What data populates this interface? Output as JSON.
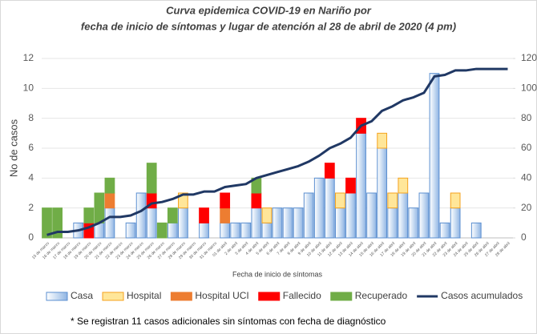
{
  "chart_data": {
    "type": "bar",
    "stacked": true,
    "title": "Curva epidemica COVID-19 en Nariño por",
    "subtitle": "fecha de inicio de síntomas y lugar de atención al 28 de abril de 2020 (4 pm)",
    "x_label": "Fecha de inicio de síntomas",
    "y_label": "No de casos",
    "footnote": "* Se registran 11 casos adicionales sin síntomas con  fecha de diagnóstico",
    "categories": [
      "15 de marzo",
      "16 de marzo",
      "17 de marzo",
      "18 de marzo",
      "19 de marzo",
      "20 de marzo",
      "21 de marzo",
      "22 de marzo",
      "23 de marzo",
      "24 de marzo",
      "25 de marzo",
      "26 de marzo",
      "27 de marzo",
      "28 de marzo",
      "29 de marzo",
      "30 de marzo",
      "31 de marzo",
      "01 de abril",
      "2 de abril",
      "3 de abril",
      "4 de abril",
      "5 de abril",
      "6 de abril",
      "7 de abril",
      "8 de abril",
      "9 de abril",
      "10 de abril",
      "11 de abril",
      "12 de abril",
      "13 de abril",
      "14 de abril",
      "15 de abril",
      "16 de abril",
      "17 de abril",
      "18 de abril",
      "19 de abril",
      "20 de abril",
      "21 de abril",
      "22 de abril",
      "23 de abril",
      "24 de abril",
      "25 de abril",
      "26 de abril",
      "27 de abril",
      "28 de abril"
    ],
    "series": [
      {
        "name": "Casa",
        "color": "#c9dcf2",
        "border": "#5b8fd0",
        "values": [
          0,
          0,
          0,
          1,
          0,
          1,
          2,
          0,
          1,
          3,
          2,
          0,
          1,
          2,
          0,
          1,
          0,
          1,
          1,
          1,
          2,
          1,
          2,
          2,
          2,
          3,
          4,
          4,
          2,
          3,
          7,
          3,
          6,
          2,
          3,
          2,
          3,
          11,
          1,
          2,
          0,
          1,
          0,
          0,
          0
        ]
      },
      {
        "name": "Hospital",
        "color": "#ffe699",
        "border": "#f4a21e",
        "values": [
          0,
          0,
          0,
          0,
          0,
          0,
          0,
          0,
          0,
          0,
          0,
          0,
          0,
          1,
          0,
          0,
          0,
          0,
          0,
          0,
          0,
          1,
          0,
          0,
          0,
          0,
          0,
          0,
          1,
          0,
          0,
          0,
          1,
          1,
          1,
          0,
          0,
          0,
          0,
          1,
          0,
          0,
          0,
          0,
          0
        ]
      },
      {
        "name": "Hospital UCI",
        "color": "#ed7d31",
        "border": "#ed7d31",
        "values": [
          0,
          0,
          0,
          0,
          0,
          0,
          1,
          0,
          0,
          0,
          0,
          0,
          0,
          0,
          0,
          0,
          0,
          1,
          0,
          0,
          0,
          0,
          0,
          0,
          0,
          0,
          0,
          0,
          0,
          0,
          0,
          0,
          0,
          0,
          0,
          0,
          0,
          0,
          0,
          0,
          0,
          0,
          0,
          0,
          0
        ]
      },
      {
        "name": "Fallecido",
        "color": "#ff0000",
        "border": "#ff0000",
        "values": [
          0,
          0,
          0,
          0,
          1,
          0,
          0,
          0,
          0,
          0,
          1,
          0,
          0,
          0,
          0,
          1,
          0,
          1,
          0,
          0,
          1,
          0,
          0,
          0,
          0,
          0,
          0,
          1,
          0,
          1,
          1,
          0,
          0,
          0,
          0,
          0,
          0,
          0,
          0,
          0,
          0,
          0,
          0,
          0,
          0
        ]
      },
      {
        "name": "Recuperado",
        "color": "#70ad47",
        "border": "#70ad47",
        "values": [
          2,
          2,
          0,
          0,
          1,
          2,
          1,
          0,
          0,
          0,
          2,
          1,
          1,
          0,
          0,
          0,
          0,
          0,
          0,
          0,
          1,
          0,
          0,
          0,
          0,
          0,
          0,
          0,
          0,
          0,
          0,
          0,
          0,
          0,
          0,
          0,
          0,
          0,
          0,
          0,
          0,
          0,
          0,
          0,
          0
        ]
      },
      {
        "name": "Casos acumulados",
        "type": "line",
        "axis": "y2",
        "color": "#203864",
        "values": [
          2,
          4,
          4,
          5,
          7,
          10,
          14,
          14,
          15,
          18,
          23,
          24,
          26,
          29,
          29,
          31,
          31,
          34,
          35,
          36,
          40,
          42,
          44,
          46,
          48,
          51,
          55,
          60,
          63,
          67,
          75,
          78,
          85,
          88,
          92,
          94,
          97,
          108,
          109,
          112,
          112,
          113,
          113,
          113,
          113
        ]
      }
    ],
    "ylim": [
      0,
      12
    ],
    "yticks": [
      0,
      2,
      4,
      6,
      8,
      10,
      12
    ],
    "y2lim": [
      0,
      120
    ],
    "y2ticks": [
      0,
      20,
      40,
      60,
      80,
      100,
      120
    ],
    "legend": "bottom"
  }
}
